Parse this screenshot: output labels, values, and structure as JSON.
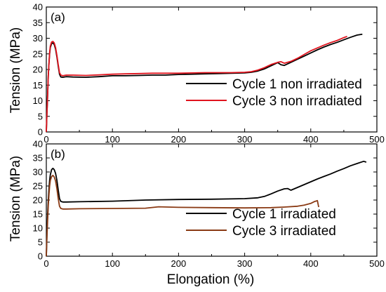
{
  "chart_data": [
    {
      "type": "line",
      "panel_label": "(a)",
      "xlim": [
        0,
        500
      ],
      "ylim": [
        0,
        40
      ],
      "x_ticks": [
        0,
        100,
        200,
        300,
        400,
        500
      ],
      "y_ticks": [
        0,
        5,
        10,
        15,
        20,
        25,
        30,
        35,
        40
      ],
      "ylabel": "Tension (MPa)",
      "xlabel": "",
      "legend_position": "center-right",
      "series": [
        {
          "name": "Cycle 1 non irradiated",
          "color": "#000000",
          "x": [
            0,
            1,
            2,
            3,
            4,
            5,
            6,
            8,
            10,
            12,
            14,
            16,
            18,
            20,
            22,
            25,
            30,
            40,
            60,
            80,
            100,
            120,
            140,
            160,
            180,
            200,
            220,
            240,
            260,
            280,
            300,
            310,
            320,
            330,
            340,
            350,
            355,
            360,
            370,
            380,
            390,
            400,
            410,
            420,
            430,
            440,
            450,
            460,
            470,
            478
          ],
          "y": [
            0,
            6,
            12,
            18,
            22,
            25,
            27,
            28.3,
            28.5,
            28,
            26.5,
            24,
            21,
            18.5,
            17.6,
            17.5,
            17.7,
            17.6,
            17.5,
            17.7,
            18,
            18,
            18.1,
            18.2,
            18.2,
            18.4,
            18.5,
            18.6,
            18.7,
            18.8,
            18.9,
            19.1,
            19.5,
            20.2,
            21.2,
            22.2,
            21.5,
            21.3,
            22.3,
            23.3,
            24.3,
            25.3,
            26.3,
            27.2,
            28,
            28.7,
            29.5,
            30.3,
            31,
            31.3
          ]
        },
        {
          "name": "Cycle 3 non irradiated",
          "color": "#e0141e",
          "x": [
            0,
            1,
            2,
            3,
            4,
            5,
            6,
            8,
            10,
            12,
            14,
            16,
            18,
            20,
            22,
            25,
            30,
            40,
            60,
            80,
            100,
            120,
            140,
            160,
            180,
            200,
            220,
            240,
            260,
            280,
            300,
            310,
            320,
            330,
            340,
            350,
            355,
            360,
            370,
            380,
            390,
            400,
            410,
            420,
            430,
            440,
            450,
            455
          ],
          "y": [
            0,
            6,
            12,
            18,
            22,
            25.5,
            27.5,
            28.8,
            29,
            28.5,
            27,
            24.5,
            21.5,
            19,
            18.2,
            18,
            18.2,
            18.2,
            18.1,
            18.3,
            18.5,
            18.6,
            18.7,
            18.8,
            18.8,
            18.8,
            18.9,
            19,
            19,
            19,
            19.1,
            19.3,
            19.8,
            20.6,
            21.6,
            22.3,
            22.5,
            22,
            22.6,
            23.6,
            24.8,
            26,
            26.9,
            27.8,
            28.6,
            29.3,
            30.2,
            30.6
          ]
        }
      ]
    },
    {
      "type": "line",
      "panel_label": "(b)",
      "xlim": [
        0,
        500
      ],
      "ylim": [
        0,
        40
      ],
      "x_ticks": [
        0,
        100,
        200,
        300,
        400,
        500
      ],
      "y_ticks": [
        0,
        5,
        10,
        15,
        20,
        25,
        30,
        35,
        40
      ],
      "ylabel": "Tension (MPa)",
      "xlabel": "Elongation (%)",
      "legend_position": "center-right",
      "series": [
        {
          "name": "Cycle 1  irradiated",
          "color": "#000000",
          "x": [
            0,
            1,
            2,
            3,
            4,
            5,
            6,
            8,
            10,
            12,
            14,
            16,
            18,
            20,
            22,
            25,
            30,
            50,
            100,
            150,
            200,
            250,
            300,
            320,
            330,
            340,
            350,
            360,
            365,
            370,
            380,
            390,
            400,
            410,
            420,
            430,
            440,
            450,
            460,
            470,
            480,
            484
          ],
          "y": [
            0,
            8,
            15,
            20,
            24,
            27,
            29,
            30.8,
            31.3,
            30.8,
            29.5,
            27,
            23.5,
            20.5,
            19.5,
            19.3,
            19.3,
            19.4,
            19.6,
            20,
            20.2,
            20.3,
            20.5,
            20.8,
            21.3,
            22.2,
            23.2,
            24,
            24.1,
            23.5,
            24.5,
            25.5,
            26.5,
            27.5,
            28.4,
            29.3,
            30.3,
            31.2,
            32.2,
            33,
            33.8,
            33.5
          ]
        },
        {
          "name": "Cycle 3  irradiated",
          "color": "#8a3a14",
          "x": [
            0,
            1,
            2,
            3,
            4,
            5,
            6,
            8,
            10,
            12,
            14,
            16,
            18,
            20,
            22,
            25,
            30,
            50,
            100,
            150,
            170,
            200,
            250,
            300,
            340,
            360,
            380,
            390,
            400,
            405,
            410,
            412
          ],
          "y": [
            0,
            7,
            13,
            18,
            22,
            25,
            27,
            28.3,
            28.8,
            28.2,
            26.8,
            24,
            20.5,
            17.8,
            17,
            16.8,
            16.8,
            16.9,
            17,
            17.1,
            17.6,
            17.4,
            17.3,
            17.2,
            17.3,
            17.5,
            17.8,
            18.2,
            18.8,
            19.4,
            19.8,
            17.5
          ]
        }
      ]
    }
  ]
}
